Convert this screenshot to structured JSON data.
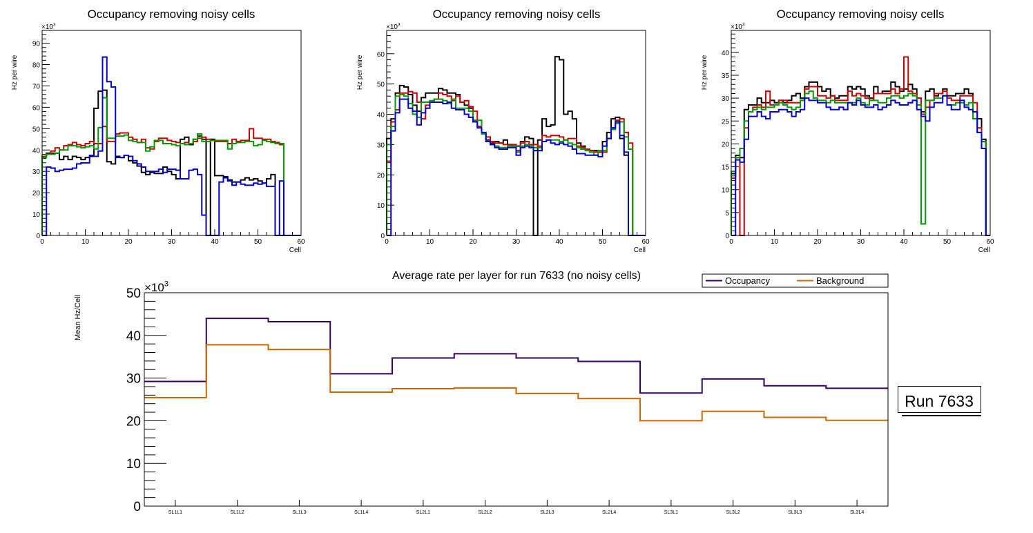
{
  "chart_data": [
    {
      "type": "line",
      "style": "step-histogram",
      "title": "Occupancy removing noisy cells",
      "xlabel": "Cell",
      "ylabel": "Hz per wire",
      "y_multiplier": "×10^3",
      "xlim": [
        0,
        60
      ],
      "ylim": [
        0,
        96
      ],
      "xticks": [
        "0",
        "10",
        "20",
        "30",
        "40",
        "50",
        "60"
      ],
      "yticks": [
        "0",
        "10",
        "20",
        "30",
        "40",
        "50",
        "60",
        "70",
        "80",
        "90"
      ],
      "series": [
        {
          "name": "black",
          "color": "#000000",
          "values": [
            37,
            38.5,
            38.5,
            38.5,
            35.5,
            37,
            35.5,
            37,
            36.5,
            35.5,
            36.5,
            37,
            59.5,
            67.5,
            68,
            34.5,
            33.5,
            37,
            36.5,
            37.5,
            35,
            34,
            32.5,
            29.5,
            28.5,
            29.5,
            29,
            29,
            32,
            30,
            28.5,
            26.5,
            45,
            46,
            42.5,
            45,
            46.5,
            45,
            0,
            45,
            28,
            28,
            27.5,
            26,
            25,
            25,
            26,
            27,
            26,
            26.5,
            25.5,
            24.5,
            26.5,
            28.5,
            0,
            0,
            0,
            0,
            0,
            0
          ]
        },
        {
          "name": "red",
          "color": "#cc0000",
          "values": [
            37,
            38,
            39.5,
            41,
            40,
            42,
            42.5,
            43.5,
            42.5,
            42,
            43,
            44,
            43,
            43,
            51,
            44,
            44,
            47.5,
            48,
            48,
            46,
            45,
            43.5,
            45,
            41,
            40.5,
            44,
            45.5,
            45.5,
            44.5,
            44,
            43.5,
            43,
            43.5,
            43,
            44,
            45.5,
            46,
            45,
            44.5,
            44,
            44,
            44,
            43,
            45,
            44,
            44.5,
            44.5,
            50,
            45.5,
            45.5,
            45,
            45,
            44,
            43.5,
            42.5,
            0,
            0,
            0,
            0
          ]
        },
        {
          "name": "green",
          "color": "#009900",
          "values": [
            36.5,
            38,
            38,
            38.5,
            40,
            40,
            42,
            42,
            41.5,
            41,
            41.5,
            42,
            40.5,
            50.5,
            64.5,
            45.5,
            45.5,
            46.5,
            46.5,
            47,
            44.5,
            44,
            43.5,
            43.5,
            39.5,
            41.5,
            44.5,
            44.5,
            43,
            43,
            42.5,
            42,
            43,
            42.5,
            43,
            45,
            47.5,
            44,
            44,
            44.5,
            44.5,
            44.5,
            44.5,
            40.5,
            43,
            43.5,
            43.5,
            44,
            44,
            42,
            42.5,
            44.5,
            44,
            43.5,
            43,
            43,
            0,
            0,
            0,
            0
          ]
        },
        {
          "name": "blue",
          "color": "#0000cc",
          "values": [
            0,
            32,
            31.5,
            30,
            30.5,
            31,
            31,
            31.5,
            33.5,
            34,
            34,
            37.5,
            37,
            39.5,
            83.5,
            72,
            69.5,
            36.5,
            36.5,
            37.5,
            37,
            35,
            33.5,
            32,
            30,
            30,
            30,
            31,
            29.5,
            31,
            31,
            30.5,
            26.5,
            26.5,
            30.5,
            31,
            28.5,
            9.5,
            0,
            0,
            0,
            25,
            27,
            25.5,
            23.5,
            25,
            24,
            23.5,
            23.5,
            24.5,
            24,
            24.5,
            23,
            23,
            0,
            25.5,
            0,
            0,
            0,
            0
          ]
        }
      ]
    },
    {
      "type": "line",
      "style": "step-histogram",
      "title": "Occupancy removing noisy cells",
      "xlabel": "Cell",
      "ylabel": "Hz per wire",
      "y_multiplier": "×10^3",
      "xlim": [
        0,
        60
      ],
      "ylim": [
        0,
        67.7
      ],
      "xticks": [
        "0",
        "10",
        "20",
        "30",
        "40",
        "50",
        "60"
      ],
      "yticks": [
        "0",
        "10",
        "20",
        "30",
        "40",
        "50",
        "60"
      ],
      "series": [
        {
          "name": "black",
          "color": "#000000",
          "values": [
            32,
            38.5,
            47,
            49.5,
            49,
            46.5,
            43,
            41,
            45.5,
            47,
            47,
            47,
            48.5,
            48,
            47,
            47,
            46.5,
            44,
            43,
            42,
            38,
            36,
            33.5,
            31.5,
            30.5,
            31,
            30.5,
            31.5,
            30,
            29.5,
            29.5,
            31,
            32.5,
            32,
            0,
            31.5,
            38.5,
            36,
            36.5,
            59,
            58,
            40,
            41,
            38.5,
            30.5,
            29.5,
            28.5,
            28,
            28,
            27.5,
            31,
            34,
            38.5,
            39,
            32,
            26.5,
            0,
            0,
            0,
            0
          ]
        },
        {
          "name": "red",
          "color": "#cc0000",
          "values": [
            24.5,
            37.5,
            41.5,
            47,
            47,
            47.5,
            47,
            44,
            38.5,
            43,
            44,
            45,
            47,
            46.5,
            46,
            44.5,
            46,
            44,
            44.5,
            42.5,
            41,
            36,
            33.5,
            32.5,
            31,
            30.5,
            30.5,
            30,
            30,
            30,
            28,
            30.5,
            31,
            30,
            30,
            29.5,
            33,
            32.5,
            33,
            33,
            32.5,
            31.5,
            32,
            32,
            29.5,
            29,
            28.5,
            28,
            27.5,
            27.5,
            27.5,
            32,
            35.5,
            38,
            38.5,
            34,
            30.5,
            0,
            0,
            0
          ]
        },
        {
          "name": "green",
          "color": "#009900",
          "values": [
            30,
            36,
            46,
            46.5,
            46,
            43.5,
            40,
            39,
            44,
            44,
            44.5,
            45,
            45,
            44.5,
            43.5,
            45,
            42,
            42,
            42,
            41,
            38,
            38,
            33.5,
            31,
            30,
            29.5,
            29,
            29,
            29.5,
            29.5,
            27.5,
            29.5,
            30,
            29.5,
            29,
            29,
            31,
            31.5,
            31.5,
            31.5,
            31,
            31.5,
            30.5,
            30,
            29,
            28.5,
            28,
            27.5,
            26.5,
            28,
            28,
            32,
            35,
            37,
            37.5,
            32.5,
            28.5,
            0,
            0,
            0
          ]
        },
        {
          "name": "blue",
          "color": "#0000cc",
          "values": [
            0,
            34.5,
            40.5,
            45,
            45,
            42,
            41,
            36.5,
            40.5,
            42,
            44,
            44,
            44,
            43.5,
            44,
            42,
            41.5,
            41.5,
            40,
            39,
            37.5,
            35.5,
            34,
            31,
            30,
            29,
            28.5,
            28.5,
            29,
            29,
            26.5,
            29,
            29.5,
            29,
            28,
            28,
            31,
            31.5,
            30.5,
            30,
            30.5,
            30,
            29.5,
            28.5,
            27,
            27,
            26.5,
            26.5,
            26.5,
            26,
            29.5,
            32,
            35.5,
            37.5,
            33,
            27.5,
            0,
            0,
            0,
            0
          ]
        }
      ]
    },
    {
      "type": "line",
      "style": "step-histogram",
      "title": "Occupancy removing noisy cells",
      "xlabel": "Cell",
      "ylabel": "Hz per wire",
      "y_multiplier": "×10^3",
      "xlim": [
        0,
        60
      ],
      "ylim": [
        0,
        44.8
      ],
      "xticks": [
        "0",
        "10",
        "20",
        "30",
        "40",
        "50",
        "60"
      ],
      "yticks": [
        "0",
        "5",
        "10",
        "15",
        "20",
        "25",
        "30",
        "35",
        "40"
      ],
      "series": [
        {
          "name": "black",
          "color": "#000000",
          "values": [
            13.5,
            17.5,
            17,
            27.5,
            28.5,
            28.5,
            30,
            29,
            29,
            29.5,
            29,
            29.5,
            29,
            29.5,
            30.5,
            31,
            30,
            32.5,
            33.5,
            33.5,
            32.5,
            31.5,
            32,
            30.5,
            30,
            30.5,
            30.5,
            32.5,
            32,
            32.5,
            32,
            30.5,
            30,
            32.5,
            31,
            31.5,
            31.5,
            33.5,
            32.5,
            31.5,
            32,
            33,
            32,
            30,
            27,
            31.5,
            32,
            30.5,
            31,
            32,
            30.5,
            30.5,
            31,
            31,
            32,
            31,
            27,
            25.5,
            21,
            0
          ]
        },
        {
          "name": "red",
          "color": "#cc0000",
          "values": [
            12.5,
            17,
            0,
            23.5,
            27,
            28,
            28.5,
            28,
            31.5,
            28.5,
            28.5,
            29.5,
            29.5,
            29,
            29,
            29,
            29.5,
            32,
            32.5,
            32.5,
            30.5,
            30.5,
            30,
            30.5,
            29.5,
            29.5,
            29.5,
            31.5,
            30.5,
            31,
            30.5,
            30,
            29.5,
            31,
            31,
            31,
            31,
            32,
            31,
            32,
            39,
            31.5,
            31,
            30,
            26.5,
            28,
            29.5,
            31,
            31,
            31.5,
            30,
            29.5,
            29.5,
            30.5,
            30.5,
            30.5,
            29,
            23.5,
            20.5,
            0
          ]
        },
        {
          "name": "green",
          "color": "#009900",
          "values": [
            14,
            17,
            19,
            25,
            27,
            27.5,
            28,
            27.5,
            28,
            28,
            28.5,
            29,
            28.5,
            28,
            27.5,
            28,
            29.5,
            31,
            31.5,
            30,
            29.5,
            29.5,
            29,
            29.5,
            29,
            29,
            29,
            29,
            29,
            30,
            29,
            28.5,
            29.5,
            29.5,
            29,
            29,
            30,
            30.5,
            30.5,
            30,
            30.5,
            31,
            30.5,
            28.5,
            2.5,
            29.5,
            29.5,
            30,
            30,
            30.5,
            28.5,
            28.5,
            29,
            29,
            28.5,
            29,
            25.5,
            22.5,
            20.5,
            0
          ]
        },
        {
          "name": "blue",
          "color": "#0000cc",
          "values": [
            0,
            16.5,
            16,
            21,
            26,
            26,
            27,
            26,
            25.5,
            27,
            27,
            27.5,
            27.5,
            27,
            26,
            27,
            27.5,
            30,
            29.5,
            29.5,
            29,
            29,
            28,
            27.5,
            27.5,
            28,
            27.5,
            29,
            28.5,
            29.5,
            28.5,
            28,
            28,
            28.5,
            27.5,
            28,
            28.5,
            29.5,
            29,
            28.5,
            28.5,
            29,
            29.5,
            27.5,
            26,
            25,
            28,
            29,
            29,
            30.5,
            28.5,
            27.5,
            27.5,
            29.5,
            28,
            27.5,
            27,
            22.5,
            19,
            0
          ]
        }
      ]
    },
    {
      "type": "line",
      "style": "step-histogram",
      "title": "Average rate per layer for run 7633 (no noisy cells)",
      "xlabel": "",
      "ylabel": "Mean Hz/Cell",
      "y_multiplier": "×10^3",
      "ylim": [
        0,
        50
      ],
      "yticks": [
        "0",
        "10",
        "20",
        "30",
        "40",
        "50"
      ],
      "categories": [
        "SL1L1",
        "SL1L2",
        "SL1L3",
        "SL1L4",
        "SL2L1",
        "SL2L2",
        "SL2L3",
        "SL2L4",
        "SL3L1",
        "SL3L2",
        "SL3L3",
        "SL3L4"
      ],
      "legend_position": "top-right",
      "series": [
        {
          "name": "Occupancy",
          "color": "#330066",
          "values": [
            29.2,
            44.0,
            43.2,
            31.0,
            34.7,
            35.7,
            34.7,
            33.9,
            26.5,
            29.8,
            28.2,
            27.6
          ]
        },
        {
          "name": "Background",
          "color": "#cc6600",
          "values": [
            25.4,
            37.8,
            36.7,
            26.7,
            27.5,
            27.7,
            26.4,
            25.2,
            20.0,
            22.2,
            20.8,
            20.1
          ]
        }
      ],
      "annotation": "Run 7633"
    }
  ]
}
